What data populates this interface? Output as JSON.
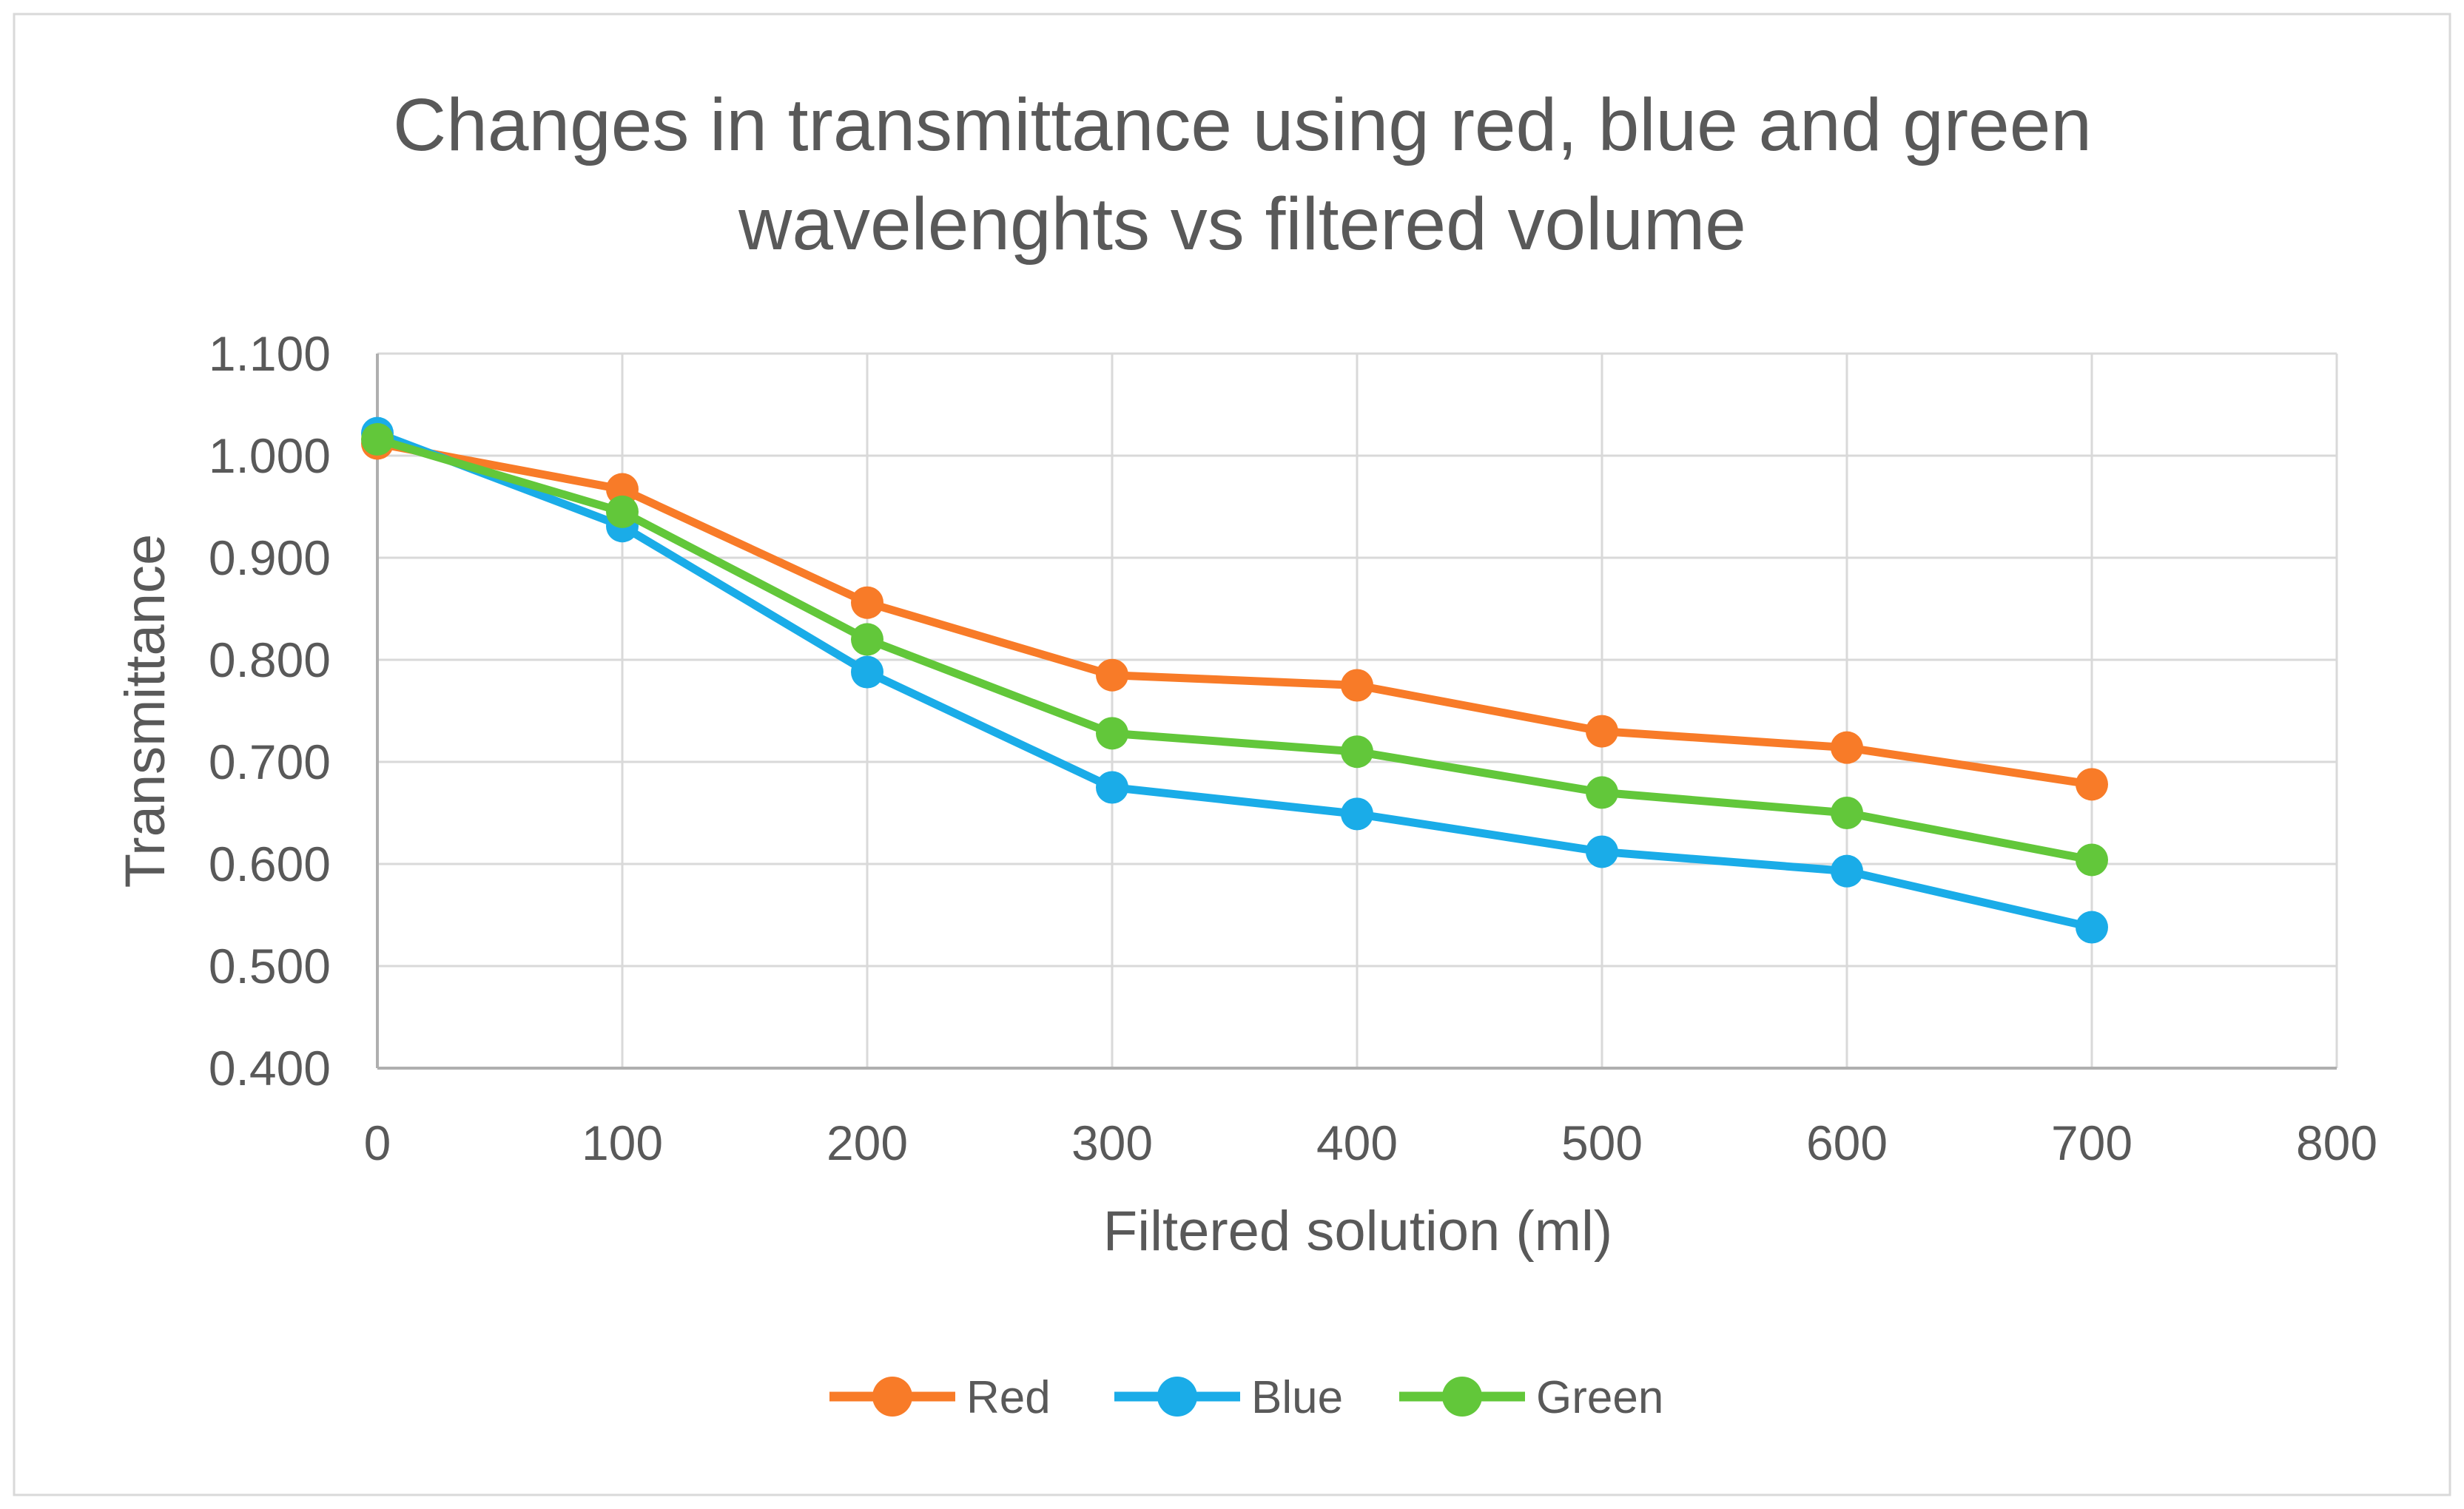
{
  "chart_data": {
    "type": "line",
    "title": "Changes in transmittance using red, blue and green wavelenghts vs filtered volume",
    "title_lines": [
      "Changes in transmittance using red, blue and green",
      "wavelenghts vs filtered volume"
    ],
    "xlabel": "Filtered solution (ml)",
    "ylabel": "Transmittance",
    "x": [
      0,
      100,
      200,
      300,
      400,
      500,
      600,
      700
    ],
    "xlim": [
      0,
      800
    ],
    "ylim": [
      0.4,
      1.1
    ],
    "x_ticks": [
      0,
      100,
      200,
      300,
      400,
      500,
      600,
      700,
      800
    ],
    "y_ticks": [
      0.4,
      0.5,
      0.6,
      0.7,
      0.8,
      0.9,
      1.0,
      1.1
    ],
    "y_tick_decimals": 3,
    "grid": true,
    "legend_position": "bottom",
    "series": [
      {
        "name": "Red",
        "color": "#F87B28",
        "values": [
          1.012,
          0.967,
          0.856,
          0.785,
          0.775,
          0.73,
          0.714,
          0.678
        ]
      },
      {
        "name": "Blue",
        "color": "#1AACE8",
        "values": [
          1.022,
          0.931,
          0.788,
          0.675,
          0.649,
          0.612,
          0.593,
          0.538
        ]
      },
      {
        "name": "Green",
        "color": "#62C73A",
        "values": [
          1.016,
          0.945,
          0.82,
          0.728,
          0.71,
          0.67,
          0.65,
          0.604
        ]
      }
    ]
  },
  "colors": {
    "text": "#595959",
    "gridline": "#D9D9D9",
    "axis": "#AFAFAF",
    "border": "#D9D9D9",
    "background": "#FFFFFF"
  }
}
